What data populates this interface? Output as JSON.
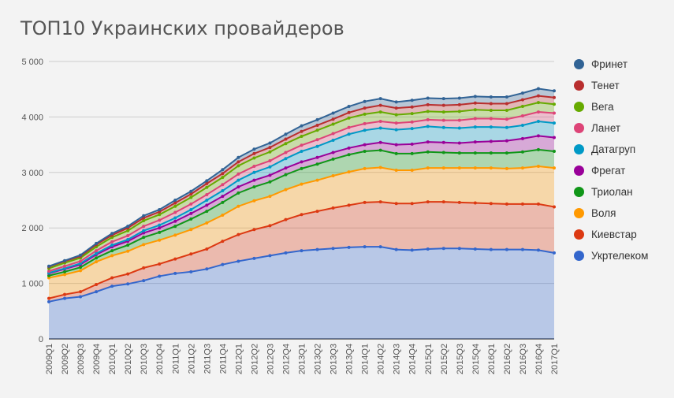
{
  "chart_data": {
    "type": "area",
    "stacked": true,
    "title": "ТОП10 Украинских провайдеров",
    "ylim": [
      0,
      5000
    ],
    "yticks": [
      0,
      1000,
      2000,
      3000,
      4000,
      5000
    ],
    "ytick_labels": [
      "0",
      "1 000",
      "2 000",
      "3 000",
      "4 000",
      "5 000"
    ],
    "grid": true,
    "legend_position": "right",
    "categories": [
      "2009Q1",
      "2009Q2",
      "2009Q3",
      "2009Q4",
      "2010Q1",
      "2010Q2",
      "2010Q3",
      "2010Q4",
      "2011Q1",
      "2011Q2",
      "2011Q3",
      "2011Q4",
      "2012Q1",
      "2012Q2",
      "2012Q3",
      "2012Q4",
      "2013Q1",
      "2013Q2",
      "2013Q3",
      "2013Q4",
      "2014Q1",
      "2014Q2",
      "2014Q3",
      "2014Q4",
      "2015Q1",
      "2015Q2",
      "2015Q3",
      "2015Q4",
      "2016Q1",
      "2016Q2",
      "2016Q3",
      "2016Q4",
      "2017Q1"
    ],
    "series": [
      {
        "name": "Укртелеком",
        "color": "#3366cc",
        "values": [
          670,
          730,
          760,
          850,
          950,
          990,
          1050,
          1130,
          1180,
          1210,
          1260,
          1340,
          1400,
          1450,
          1500,
          1550,
          1590,
          1610,
          1630,
          1650,
          1660,
          1660,
          1610,
          1600,
          1620,
          1630,
          1630,
          1620,
          1610,
          1610,
          1610,
          1600,
          1550
        ]
      },
      {
        "name": "Киевстар",
        "color": "#dc3912",
        "values": [
          60,
          70,
          90,
          130,
          150,
          180,
          230,
          220,
          260,
          320,
          360,
          420,
          480,
          520,
          540,
          600,
          650,
          690,
          730,
          760,
          800,
          810,
          830,
          840,
          850,
          840,
          830,
          830,
          830,
          820,
          820,
          830,
          830
        ]
      },
      {
        "name": "Воля",
        "color": "#ff9900",
        "values": [
          370,
          360,
          380,
          410,
          400,
          410,
          420,
          430,
          430,
          440,
          470,
          470,
          510,
          520,
          530,
          540,
          550,
          560,
          580,
          600,
          610,
          620,
          600,
          600,
          610,
          610,
          620,
          630,
          640,
          640,
          650,
          680,
          700
        ]
      },
      {
        "name": "Триолан",
        "color": "#109618",
        "values": [
          40,
          50,
          60,
          70,
          90,
          110,
          130,
          140,
          160,
          190,
          210,
          230,
          240,
          250,
          260,
          270,
          280,
          290,
          300,
          310,
          310,
          310,
          300,
          300,
          290,
          280,
          270,
          270,
          270,
          280,
          290,
          300,
          300
        ]
      },
      {
        "name": "Фрегат",
        "color": "#990099",
        "values": [
          40,
          50,
          50,
          60,
          70,
          70,
          80,
          80,
          90,
          100,
          110,
          110,
          110,
          120,
          120,
          120,
          120,
          120,
          120,
          120,
          120,
          140,
          160,
          170,
          180,
          180,
          180,
          200,
          210,
          220,
          240,
          250,
          250
        ]
      },
      {
        "name": "Датагруп",
        "color": "#0099c6",
        "values": [
          10,
          10,
          20,
          20,
          30,
          30,
          40,
          50,
          60,
          70,
          90,
          100,
          120,
          140,
          150,
          170,
          190,
          200,
          220,
          250,
          260,
          260,
          270,
          280,
          280,
          270,
          270,
          270,
          260,
          240,
          240,
          260,
          260
        ]
      },
      {
        "name": "Ланет",
        "color": "#dd4477",
        "values": [
          30,
          40,
          40,
          50,
          60,
          70,
          80,
          90,
          100,
          100,
          100,
          110,
          110,
          110,
          110,
          110,
          110,
          120,
          120,
          120,
          120,
          120,
          120,
          120,
          120,
          130,
          140,
          150,
          150,
          150,
          170,
          170,
          180
        ]
      },
      {
        "name": "Вега",
        "color": "#66aa00",
        "values": [
          50,
          60,
          60,
          70,
          80,
          90,
          100,
          100,
          110,
          120,
          130,
          130,
          150,
          150,
          160,
          160,
          160,
          170,
          170,
          170,
          170,
          170,
          150,
          150,
          150,
          150,
          160,
          160,
          150,
          160,
          170,
          170,
          160
        ]
      },
      {
        "name": "Тенет",
        "color": "#b82e2e",
        "values": [
          30,
          30,
          30,
          40,
          40,
          50,
          50,
          50,
          60,
          60,
          70,
          70,
          70,
          80,
          80,
          80,
          90,
          90,
          90,
          100,
          110,
          120,
          120,
          120,
          120,
          120,
          120,
          120,
          120,
          120,
          120,
          120,
          120
        ]
      },
      {
        "name": "Фринет",
        "color": "#316395",
        "values": [
          10,
          10,
          20,
          20,
          30,
          30,
          40,
          40,
          50,
          50,
          50,
          70,
          80,
          80,
          80,
          90,
          100,
          100,
          110,
          110,
          120,
          120,
          110,
          120,
          120,
          120,
          120,
          120,
          120,
          120,
          120,
          130,
          120
        ]
      }
    ]
  }
}
